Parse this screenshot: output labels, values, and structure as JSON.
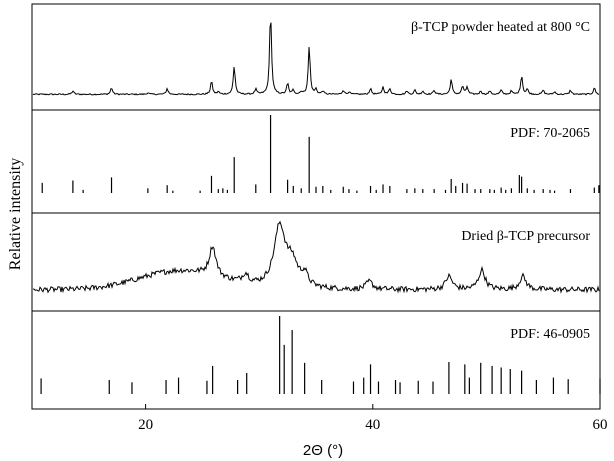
{
  "chart_data": {
    "type": "line",
    "xlabel": "2Θ (°)",
    "ylabel": "Relative intensity",
    "xlim": [
      10,
      60
    ],
    "xticks": [
      20,
      40,
      60
    ],
    "xtick_labels": [
      "20",
      "40",
      "60"
    ],
    "panels": [
      {
        "label": "β-TCP powder heated at 800 °C",
        "kind": "pattern",
        "baseline": 2,
        "peaks": [
          [
            13.6,
            4
          ],
          [
            17.0,
            8
          ],
          [
            20.2,
            2
          ],
          [
            21.9,
            7
          ],
          [
            25.8,
            16
          ],
          [
            26.4,
            3
          ],
          [
            27.8,
            34
          ],
          [
            29.7,
            6
          ],
          [
            31.0,
            100
          ],
          [
            32.5,
            13
          ],
          [
            33.0,
            5
          ],
          [
            33.7,
            3
          ],
          [
            34.4,
            58
          ],
          [
            35.0,
            6
          ],
          [
            35.6,
            4
          ],
          [
            37.4,
            5
          ],
          [
            37.9,
            3
          ],
          [
            39.8,
            7
          ],
          [
            40.9,
            9
          ],
          [
            41.5,
            7
          ],
          [
            43.0,
            4
          ],
          [
            43.7,
            5
          ],
          [
            44.4,
            4
          ],
          [
            45.4,
            5
          ],
          [
            46.9,
            18
          ],
          [
            47.9,
            10
          ],
          [
            48.3,
            9
          ],
          [
            49.5,
            4
          ],
          [
            50.3,
            4
          ],
          [
            51.3,
            5
          ],
          [
            52.2,
            4
          ],
          [
            53.1,
            23
          ],
          [
            53.6,
            6
          ],
          [
            55.0,
            5
          ],
          [
            56.0,
            3
          ],
          [
            57.4,
            5
          ],
          [
            59.5,
            8
          ]
        ]
      },
      {
        "label": "PDF: 70-2065",
        "kind": "sticks",
        "sticks": [
          [
            10.9,
            13
          ],
          [
            13.6,
            16
          ],
          [
            14.5,
            4
          ],
          [
            17.0,
            20
          ],
          [
            20.2,
            6
          ],
          [
            21.9,
            10
          ],
          [
            22.4,
            3
          ],
          [
            24.8,
            3
          ],
          [
            25.8,
            22
          ],
          [
            26.4,
            5
          ],
          [
            26.8,
            6
          ],
          [
            27.2,
            4
          ],
          [
            27.8,
            46
          ],
          [
            29.7,
            11
          ],
          [
            31.0,
            100
          ],
          [
            32.5,
            17
          ],
          [
            33.0,
            9
          ],
          [
            33.7,
            6
          ],
          [
            34.4,
            72
          ],
          [
            35.0,
            8
          ],
          [
            35.6,
            9
          ],
          [
            36.3,
            4
          ],
          [
            37.4,
            8
          ],
          [
            37.9,
            5
          ],
          [
            38.6,
            3
          ],
          [
            39.8,
            9
          ],
          [
            40.3,
            4
          ],
          [
            40.9,
            11
          ],
          [
            41.5,
            9
          ],
          [
            43.0,
            5
          ],
          [
            43.7,
            6
          ],
          [
            44.4,
            5
          ],
          [
            45.4,
            5
          ],
          [
            46.4,
            4
          ],
          [
            46.9,
            18
          ],
          [
            47.3,
            9
          ],
          [
            47.9,
            13
          ],
          [
            48.3,
            12
          ],
          [
            49.0,
            5
          ],
          [
            49.5,
            5
          ],
          [
            50.3,
            5
          ],
          [
            50.7,
            4
          ],
          [
            51.3,
            7
          ],
          [
            51.7,
            4
          ],
          [
            52.2,
            6
          ],
          [
            52.9,
            23
          ],
          [
            53.1,
            21
          ],
          [
            53.6,
            6
          ],
          [
            54.2,
            4
          ],
          [
            55.0,
            5
          ],
          [
            55.6,
            4
          ],
          [
            56.0,
            3
          ],
          [
            57.4,
            5
          ],
          [
            59.5,
            7
          ],
          [
            59.9,
            10
          ]
        ]
      },
      {
        "label": "Dried β-TCP precursor",
        "kind": "pattern",
        "baseline": 8,
        "hump": {
          "center": 23,
          "width": 5,
          "height": 24
        },
        "peaks": [
          [
            25.9,
            38
          ],
          [
            28.8,
            12
          ],
          [
            31.8,
            78
          ],
          [
            32.9,
            30
          ],
          [
            34.0,
            15
          ],
          [
            39.7,
            10
          ],
          [
            46.7,
            17
          ],
          [
            49.6,
            25
          ],
          [
            53.2,
            17
          ]
        ]
      },
      {
        "label": "PDF: 46-0905",
        "kind": "sticks",
        "sticks": [
          [
            10.8,
            20
          ],
          [
            16.8,
            18
          ],
          [
            18.8,
            15
          ],
          [
            21.8,
            18
          ],
          [
            22.9,
            21
          ],
          [
            25.4,
            17
          ],
          [
            25.9,
            36
          ],
          [
            28.1,
            18
          ],
          [
            28.9,
            27
          ],
          [
            31.8,
            100
          ],
          [
            32.2,
            63
          ],
          [
            32.9,
            82
          ],
          [
            34.0,
            40
          ],
          [
            35.5,
            18
          ],
          [
            38.3,
            16
          ],
          [
            39.2,
            21
          ],
          [
            39.8,
            38
          ],
          [
            40.5,
            16
          ],
          [
            42.0,
            18
          ],
          [
            42.4,
            15
          ],
          [
            44.0,
            17
          ],
          [
            45.3,
            16
          ],
          [
            46.7,
            41
          ],
          [
            48.1,
            38
          ],
          [
            48.5,
            21
          ],
          [
            49.5,
            40
          ],
          [
            50.5,
            36
          ],
          [
            51.3,
            34
          ],
          [
            52.1,
            32
          ],
          [
            53.1,
            30
          ],
          [
            54.4,
            18
          ],
          [
            55.9,
            21
          ],
          [
            57.2,
            19
          ],
          [
            60.0,
            20
          ]
        ]
      }
    ]
  }
}
